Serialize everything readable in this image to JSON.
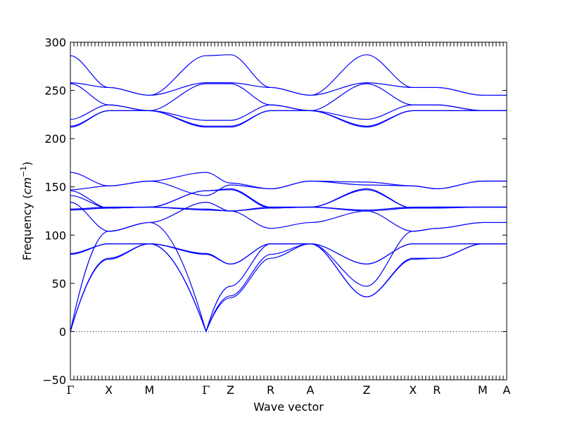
{
  "chart_data": {
    "type": "line",
    "title": "",
    "xlabel": "Wave vector",
    "ylabel": "Frequency",
    "ylabel_unit": "cm",
    "ylabel_unit_exp": "−1",
    "ylim": [
      -50,
      300
    ],
    "yticks": [
      -50,
      0,
      50,
      100,
      150,
      200,
      250,
      300
    ],
    "ytick_labels": [
      "−50",
      "0",
      "50",
      "100",
      "150",
      "200",
      "250",
      "300"
    ],
    "xlim": [
      0,
      1
    ],
    "path_points": [
      {
        "label": "Γ",
        "x": 0.0
      },
      {
        "label": "X",
        "x": 0.088
      },
      {
        "label": "M",
        "x": 0.181
      },
      {
        "label": "Γ",
        "x": 0.311
      },
      {
        "label": "Z",
        "x": 0.367
      },
      {
        "label": "R",
        "x": 0.459
      },
      {
        "label": "A",
        "x": 0.55
      },
      {
        "label": "Z",
        "x": 0.679
      },
      {
        "label": "X",
        "x": 0.785
      },
      {
        "label": "R",
        "x": 0.84
      },
      {
        "label": "M",
        "x": 0.945
      },
      {
        "label": "A",
        "x": 1.0
      }
    ],
    "zero_line": 0,
    "line_color": "#0000ff",
    "series": [
      {
        "x": [
          0,
          0.088,
          0.181,
          0.311,
          0.367,
          0.459,
          0.55,
          0.679,
          0.785,
          0.84,
          0.945,
          1.0
        ],
        "y": [
          0,
          75,
          91,
          0,
          35,
          76,
          91,
          36,
          75,
          76,
          91,
          91
        ]
      },
      {
        "x": [
          0,
          0.088,
          0.181,
          0.311,
          0.367,
          0.459,
          0.55,
          0.679,
          0.785,
          0.84,
          0.945,
          1.0
        ],
        "y": [
          0,
          76,
          91,
          0,
          37,
          80,
          91,
          36,
          76,
          76,
          91,
          91
        ]
      },
      {
        "x": [
          0,
          0.088,
          0.181,
          0.311,
          0.367,
          0.459,
          0.55,
          0.679,
          0.785,
          0.84,
          0.945,
          1.0
        ],
        "y": [
          0,
          104,
          113,
          0,
          47,
          91,
          91,
          47,
          104,
          107,
          113,
          113
        ]
      },
      {
        "x": [
          0,
          0.088,
          0.181,
          0.311,
          0.367,
          0.459,
          0.55,
          0.679,
          0.785,
          0.84,
          0.945,
          1.0
        ],
        "y": [
          80,
          91,
          91,
          80,
          70,
          91,
          91,
          70,
          91,
          91,
          91,
          91
        ]
      },
      {
        "x": [
          0,
          0.088,
          0.181,
          0.311,
          0.367,
          0.459,
          0.55,
          0.679,
          0.785,
          0.84,
          0.945,
          1.0
        ],
        "y": [
          81,
          91,
          91,
          81,
          70,
          91,
          91,
          70,
          91,
          91,
          91,
          91
        ]
      },
      {
        "x": [
          0,
          0.088,
          0.181,
          0.311,
          0.367,
          0.459,
          0.55,
          0.679,
          0.785,
          0.84,
          0.945,
          1.0
        ],
        "y": [
          134,
          104,
          113,
          134,
          125,
          107,
          113,
          125,
          104,
          107,
          113,
          113
        ]
      },
      {
        "x": [
          0,
          0.088,
          0.181,
          0.311,
          0.367,
          0.459,
          0.55,
          0.679,
          0.785,
          0.84,
          0.945,
          1.0
        ],
        "y": [
          126,
          128,
          129,
          126,
          125,
          128,
          129,
          125,
          128,
          128,
          129,
          129
        ]
      },
      {
        "x": [
          0,
          0.088,
          0.181,
          0.311,
          0.367,
          0.459,
          0.55,
          0.679,
          0.785,
          0.84,
          0.945,
          1.0
        ],
        "y": [
          127,
          129,
          129,
          127,
          125,
          129,
          129,
          126,
          129,
          129,
          129,
          129
        ]
      },
      {
        "x": [
          0,
          0.088,
          0.181,
          0.311,
          0.367,
          0.459,
          0.55,
          0.679,
          0.785,
          0.84,
          0.945,
          1.0
        ],
        "y": [
          141,
          128,
          129,
          146,
          147,
          128,
          129,
          147,
          128,
          129,
          129,
          129
        ]
      },
      {
        "x": [
          0,
          0.088,
          0.181,
          0.311,
          0.367,
          0.459,
          0.55,
          0.679,
          0.785,
          0.84,
          0.945,
          1.0
        ],
        "y": [
          146,
          128,
          129,
          146,
          148,
          129,
          129,
          148,
          128,
          129,
          129,
          129
        ]
      },
      {
        "x": [
          0,
          0.088,
          0.181,
          0.311,
          0.367,
          0.459,
          0.55,
          0.679,
          0.785,
          0.84,
          0.945,
          1.0
        ],
        "y": [
          147,
          151,
          156,
          141,
          152,
          148,
          156,
          152,
          151,
          148,
          156,
          156
        ]
      },
      {
        "x": [
          0,
          0.088,
          0.181,
          0.311,
          0.367,
          0.459,
          0.55,
          0.679,
          0.785,
          0.84,
          0.945,
          1.0
        ],
        "y": [
          165,
          151,
          156,
          165,
          154,
          148,
          156,
          155,
          151,
          148,
          156,
          156
        ]
      },
      {
        "x": [
          0,
          0.088,
          0.181,
          0.311,
          0.367,
          0.459,
          0.55,
          0.679,
          0.785,
          0.84,
          0.945,
          1.0
        ],
        "y": [
          212,
          229,
          229,
          212,
          212,
          229,
          229,
          212,
          229,
          229,
          229,
          229
        ]
      },
      {
        "x": [
          0,
          0.088,
          0.181,
          0.311,
          0.367,
          0.459,
          0.55,
          0.679,
          0.785,
          0.84,
          0.945,
          1.0
        ],
        "y": [
          213,
          229,
          229,
          213,
          213,
          229,
          229,
          213,
          229,
          229,
          229,
          229
        ]
      },
      {
        "x": [
          0,
          0.088,
          0.181,
          0.311,
          0.367,
          0.459,
          0.55,
          0.679,
          0.785,
          0.84,
          0.945,
          1.0
        ],
        "y": [
          220,
          235,
          229,
          219,
          219,
          235,
          229,
          220,
          235,
          235,
          229,
          229
        ]
      },
      {
        "x": [
          0,
          0.088,
          0.181,
          0.311,
          0.367,
          0.459,
          0.55,
          0.679,
          0.785,
          0.84,
          0.945,
          1.0
        ],
        "y": [
          257,
          235,
          229,
          257,
          257,
          235,
          229,
          257,
          235,
          235,
          229,
          229
        ]
      },
      {
        "x": [
          0,
          0.088,
          0.181,
          0.311,
          0.367,
          0.459,
          0.55,
          0.679,
          0.785,
          0.84,
          0.945,
          1.0
        ],
        "y": [
          258,
          253,
          245,
          258,
          258,
          253,
          245,
          258,
          253,
          253,
          245,
          245
        ]
      },
      {
        "x": [
          0,
          0.088,
          0.181,
          0.311,
          0.367,
          0.459,
          0.55,
          0.679,
          0.785,
          0.84,
          0.945,
          1.0
        ],
        "y": [
          286,
          253,
          245,
          286,
          287,
          253,
          245,
          287,
          253,
          253,
          245,
          245
        ]
      }
    ]
  }
}
